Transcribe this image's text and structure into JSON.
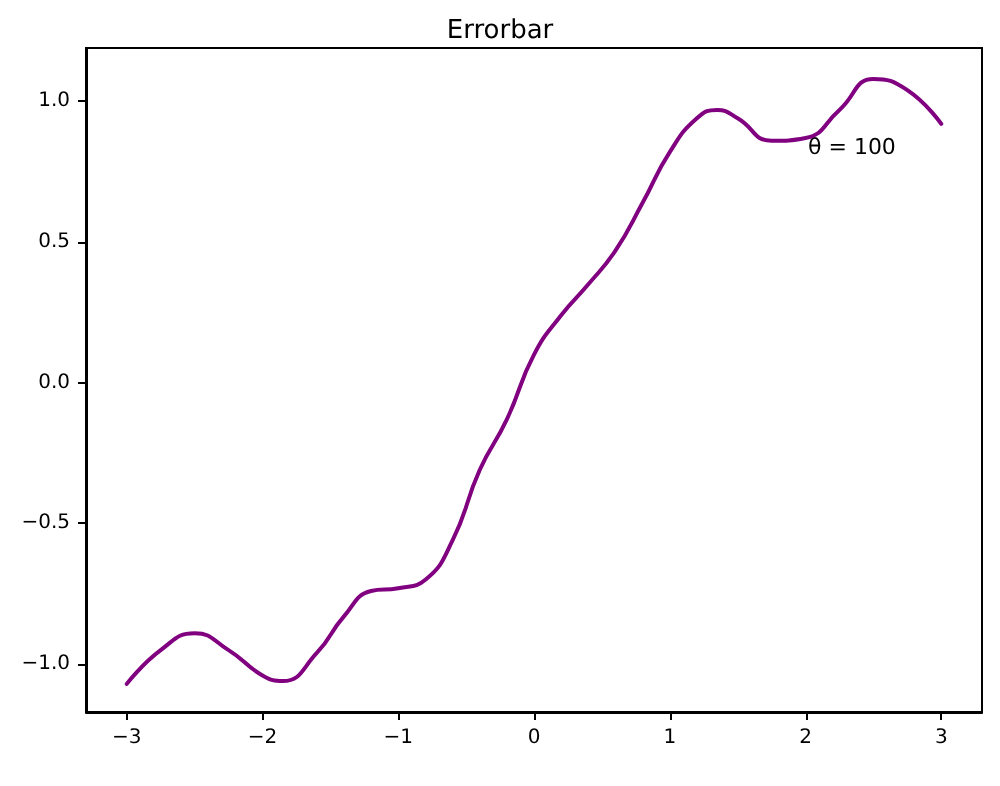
{
  "chart_data": {
    "type": "line",
    "title": "Errorbar",
    "x": [
      -3,
      -2.75,
      -2.5,
      -2.25,
      -2,
      -1.85,
      -1.6,
      -1.4,
      -1.2,
      -1,
      -0.8,
      -0.6,
      -0.4,
      -0.2,
      0,
      0.2,
      0.4,
      0.6,
      0.8,
      1,
      1.2,
      1.35,
      1.5,
      1.75,
      2,
      2.25,
      2.5,
      2.75,
      3
    ],
    "series": [
      {
        "color": "#800080",
        "values": [
          -1.07,
          -0.95,
          -0.89,
          -0.95,
          -1.04,
          -1.06,
          -0.96,
          -0.83,
          -0.74,
          -0.73,
          -0.7,
          -0.56,
          -0.31,
          -0.13,
          0.1,
          0.24,
          0.35,
          0.47,
          0.64,
          0.82,
          0.94,
          0.97,
          0.94,
          0.86,
          0.87,
          0.97,
          1.08,
          1.04,
          0.92
        ]
      }
    ],
    "xlim": [
      -3.3,
      3.3
    ],
    "ylim": [
      -1.17,
      1.19
    ],
    "xticks": [
      {
        "value": -3,
        "label": "−3"
      },
      {
        "value": -2,
        "label": "−2"
      },
      {
        "value": -1,
        "label": "−1"
      },
      0,
      1,
      2,
      3
    ],
    "yticks": [
      {
        "value": -1,
        "label": "−1.0"
      },
      {
        "value": -0.5,
        "label": "−0.5"
      },
      {
        "value": 0,
        "label": "0.0"
      },
      {
        "value": 0.5,
        "label": "0.5"
      },
      {
        "value": 1,
        "label": "1.0"
      }
    ],
    "annotations": [
      "θ = 100"
    ],
    "grid": false,
    "marker": "none",
    "line_style": "solid"
  }
}
